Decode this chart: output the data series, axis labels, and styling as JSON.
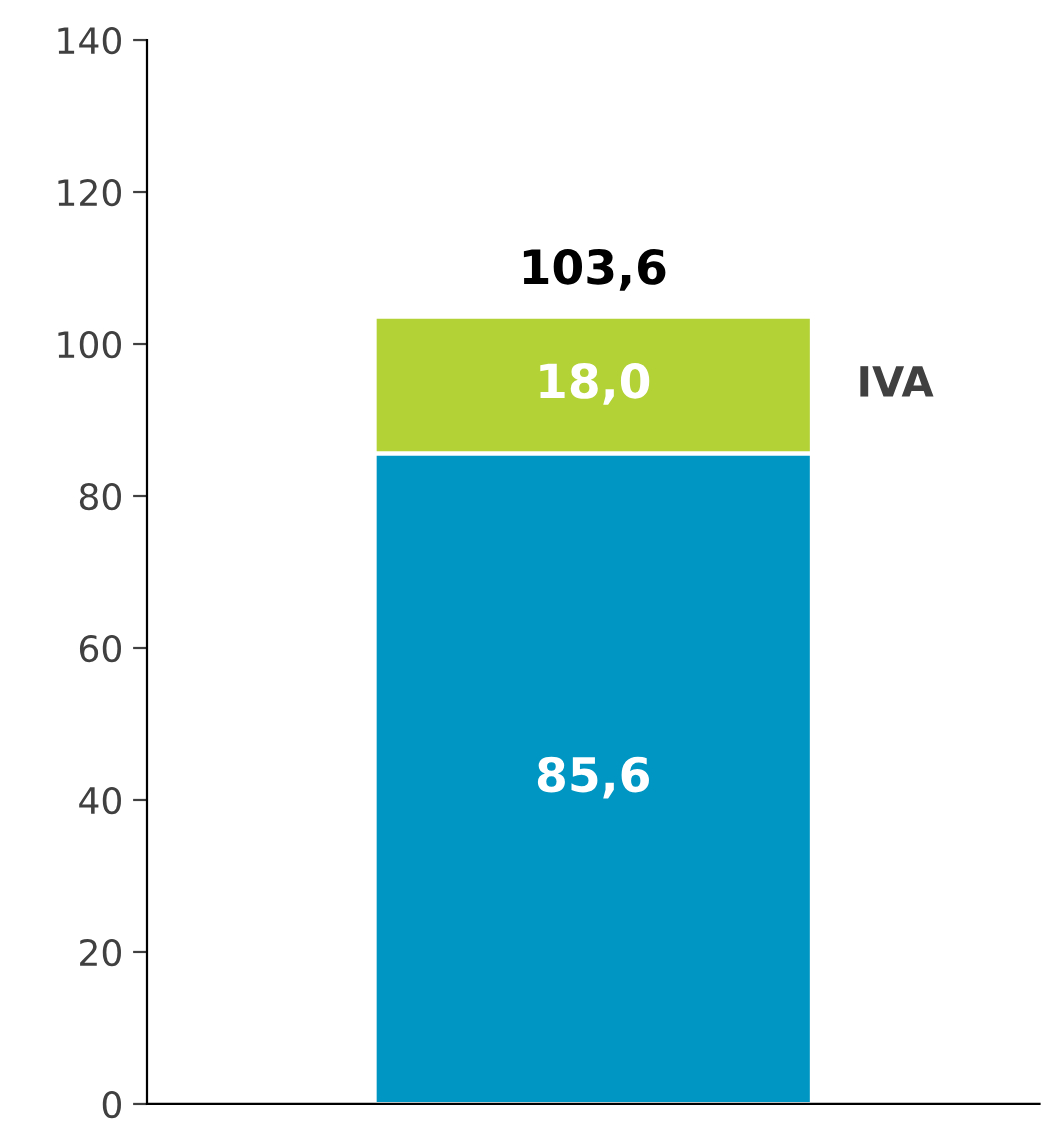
{
  "chart_data": {
    "type": "bar",
    "stacked": true,
    "categories": [
      null
    ],
    "series": [
      {
        "color": "#0096c3",
        "values": [
          85.6
        ],
        "value_labels": [
          "85,6"
        ]
      },
      {
        "name": "IVA",
        "color": "#b2d235",
        "values": [
          18.0
        ],
        "value_labels": [
          "18,0"
        ]
      }
    ],
    "totals": [
      "103,6"
    ],
    "ylim": [
      0,
      140
    ],
    "yticks": [
      0,
      20,
      40,
      60,
      80,
      100,
      120,
      140
    ],
    "grid": false,
    "legend": false,
    "tick_labels": "y"
  }
}
